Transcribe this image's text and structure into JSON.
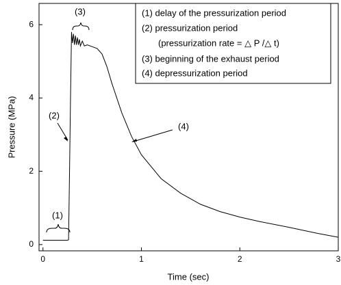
{
  "chart_data": {
    "type": "line",
    "x_label": "Time (sec)",
    "y_label": "Pressure (MPa)",
    "x": [
      0,
      0.05,
      0.1,
      0.15,
      0.2,
      0.25,
      0.26,
      0.27,
      0.28,
      0.29,
      0.3,
      0.31,
      0.32,
      0.33,
      0.34,
      0.35,
      0.36,
      0.37,
      0.38,
      0.4,
      0.42,
      0.45,
      0.5,
      0.55,
      0.6,
      0.65,
      0.7,
      0.8,
      0.9,
      1.0,
      1.2,
      1.4,
      1.6,
      1.8,
      2.0,
      2.2,
      2.5,
      2.8,
      3.0
    ],
    "values": [
      0.12,
      0.12,
      0.12,
      0.12,
      0.12,
      0.12,
      0.13,
      2.0,
      4.0,
      5.8,
      5.5,
      5.75,
      5.45,
      5.7,
      5.45,
      5.65,
      5.45,
      5.6,
      5.42,
      5.55,
      5.42,
      5.45,
      5.4,
      5.35,
      5.2,
      4.85,
      4.4,
      3.6,
      2.95,
      2.45,
      1.8,
      1.4,
      1.1,
      0.9,
      0.75,
      0.63,
      0.47,
      0.3,
      0.2
    ],
    "color": "#000000",
    "xlim": [
      -0.04,
      3
    ],
    "ylim": [
      -0.17,
      6.58
    ],
    "xticks": [
      0,
      1,
      2,
      3
    ],
    "yticks": [
      0,
      2,
      4,
      6
    ],
    "annotations": [
      "(1)",
      "(2)",
      "(3)",
      "(4)"
    ],
    "notes": [
      "(1) delay of the pressurization period",
      "(2) pressurization period",
      "(pressurization rate = △ P /△ t)",
      "(3) beginning of the exhaust period",
      "(4) depressurization period"
    ]
  }
}
